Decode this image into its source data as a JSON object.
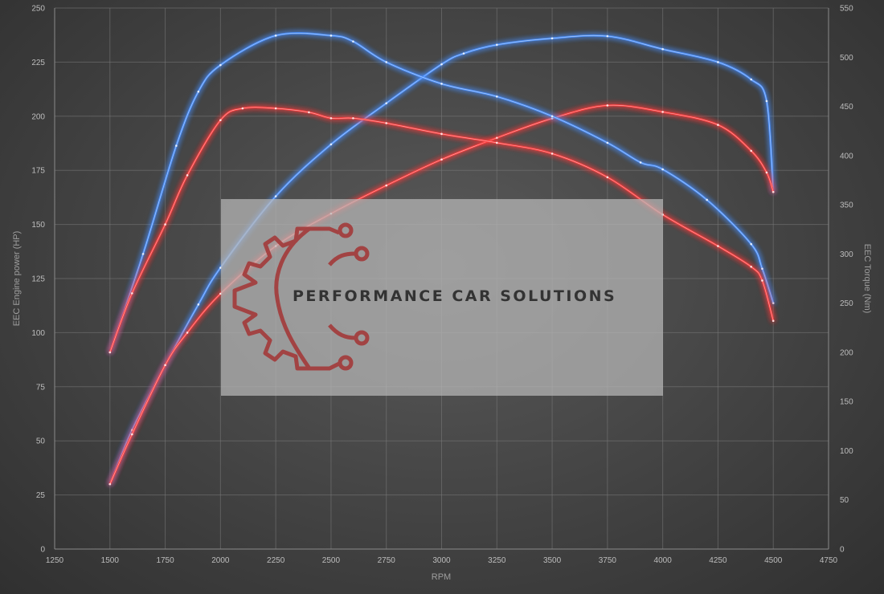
{
  "chart_data": {
    "type": "line",
    "xlabel": "RPM",
    "ylabel": "EEC Engine power (HP)",
    "y2label": "EEC Torque (Nm)",
    "xlim": [
      1250,
      4750
    ],
    "ylim": [
      0,
      250
    ],
    "y2lim": [
      0,
      550
    ],
    "x_ticks": [
      "1250",
      "1500",
      "1750",
      "2000",
      "2250",
      "2500",
      "2750",
      "3000",
      "3250",
      "3500",
      "3750",
      "4000",
      "4250",
      "4500",
      "4750"
    ],
    "y_ticks": [
      "0",
      "25",
      "50",
      "75",
      "100",
      "125",
      "150",
      "175",
      "200",
      "225",
      "250"
    ],
    "y2_ticks": [
      "0",
      "50",
      "100",
      "150",
      "200",
      "250",
      "300",
      "350",
      "400",
      "450",
      "500",
      "550"
    ],
    "grid": true,
    "series": [
      {
        "axis": "left",
        "color": "#4a90ff",
        "points": [
          [
            1500,
            30
          ],
          [
            1600,
            55
          ],
          [
            1750,
            85
          ],
          [
            1900,
            113
          ],
          [
            2000,
            130
          ],
          [
            2250,
            163
          ],
          [
            2500,
            187
          ],
          [
            2750,
            206
          ],
          [
            3000,
            224
          ],
          [
            3100,
            229
          ],
          [
            3250,
            233
          ],
          [
            3500,
            236
          ],
          [
            3750,
            237
          ],
          [
            4000,
            231
          ],
          [
            4250,
            225
          ],
          [
            4400,
            217
          ],
          [
            4470,
            207
          ],
          [
            4500,
            165
          ]
        ]
      },
      {
        "axis": "left",
        "color": "#ff3b3b",
        "points": [
          [
            1500,
            30
          ],
          [
            1600,
            53
          ],
          [
            1750,
            85
          ],
          [
            1850,
            100
          ],
          [
            2000,
            118
          ],
          [
            2250,
            140
          ],
          [
            2500,
            155
          ],
          [
            2750,
            168
          ],
          [
            3000,
            180
          ],
          [
            3250,
            190
          ],
          [
            3500,
            199
          ],
          [
            3750,
            205
          ],
          [
            4000,
            202
          ],
          [
            4250,
            196
          ],
          [
            4400,
            184
          ],
          [
            4470,
            174
          ],
          [
            4500,
            165
          ]
        ]
      },
      {
        "axis": "right",
        "color": "#4a90ff",
        "points": [
          [
            1500,
            200
          ],
          [
            1650,
            300
          ],
          [
            1800,
            410
          ],
          [
            1900,
            465
          ],
          [
            2000,
            492
          ],
          [
            2250,
            522
          ],
          [
            2500,
            522
          ],
          [
            2600,
            516
          ],
          [
            2750,
            495
          ],
          [
            3000,
            473
          ],
          [
            3250,
            460
          ],
          [
            3500,
            440
          ],
          [
            3750,
            413
          ],
          [
            3900,
            393
          ],
          [
            4000,
            386
          ],
          [
            4200,
            355
          ],
          [
            4400,
            310
          ],
          [
            4450,
            285
          ],
          [
            4500,
            250
          ]
        ]
      },
      {
        "axis": "right",
        "color": "#ff3b3b",
        "points": [
          [
            1500,
            200
          ],
          [
            1600,
            260
          ],
          [
            1750,
            330
          ],
          [
            1850,
            380
          ],
          [
            2000,
            436
          ],
          [
            2100,
            448
          ],
          [
            2250,
            448
          ],
          [
            2400,
            444
          ],
          [
            2500,
            438
          ],
          [
            2600,
            438
          ],
          [
            2750,
            433
          ],
          [
            3000,
            422
          ],
          [
            3250,
            413
          ],
          [
            3500,
            402
          ],
          [
            3750,
            378
          ],
          [
            4000,
            340
          ],
          [
            4250,
            308
          ],
          [
            4400,
            287
          ],
          [
            4450,
            273
          ],
          [
            4500,
            232
          ]
        ]
      }
    ]
  },
  "watermark": {
    "text": "PERFORMANCE CAR SOLUTIONS",
    "logo_icon": "gear-circuit-icon"
  }
}
